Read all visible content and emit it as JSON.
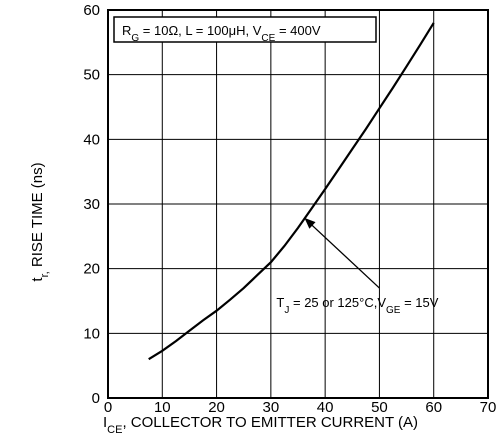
{
  "chart_data": {
    "type": "line",
    "title": "",
    "xlabel": {
      "main": "I",
      "sub": "CE",
      "rest": ", COLLECTOR TO EMITTER CURRENT (A)"
    },
    "ylabel": {
      "main": "t",
      "sub": "r,",
      "rest": " RISE TIME (ns)"
    },
    "xlim": [
      0,
      70
    ],
    "ylim": [
      0,
      60
    ],
    "x_ticks": [
      "0",
      "10",
      "20",
      "30",
      "40",
      "50",
      "60",
      "70"
    ],
    "y_ticks": [
      "0",
      "10",
      "20",
      "30",
      "40",
      "50",
      "60"
    ],
    "grid": true,
    "conditions_box": {
      "parts": [
        {
          "t": "R",
          "s": false
        },
        {
          "t": "G",
          "s": true
        },
        {
          "t": " = 10Ω, L = 100μH, V",
          "s": false
        },
        {
          "t": "CE",
          "s": true
        },
        {
          "t": " = 400V",
          "s": false
        }
      ]
    },
    "annotation": {
      "parts": [
        {
          "t": "T",
          "s": false
        },
        {
          "t": "J",
          "s": true
        },
        {
          "t": " = 25 or 125°C,V",
          "s": false
        },
        {
          "t": "GE",
          "s": true
        },
        {
          "t": " = 15V",
          "s": false
        }
      ],
      "arrow_to": [
        36,
        28
      ],
      "label_at": [
        50,
        17
      ]
    },
    "series": [
      {
        "x": [
          7.5,
          10,
          12.5,
          15,
          17.5,
          20,
          22.5,
          25,
          27.5,
          30,
          32.5,
          35,
          37.5,
          40,
          42.5,
          45,
          47.5,
          50,
          52.5,
          55,
          57.5,
          60
        ],
        "y": [
          6,
          7.3,
          8.8,
          10.4,
          12,
          13.5,
          15.2,
          17,
          19,
          21,
          23.5,
          26.3,
          29.3,
          32.3,
          35.4,
          38.5,
          41.6,
          44.8,
          48,
          51.3,
          54.6,
          58
        ]
      }
    ]
  }
}
